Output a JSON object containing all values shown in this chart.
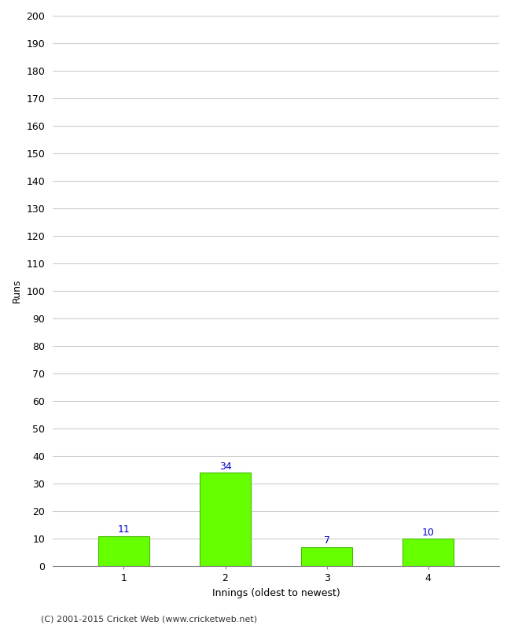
{
  "categories": [
    "1",
    "2",
    "3",
    "4"
  ],
  "values": [
    11,
    34,
    7,
    10
  ],
  "bar_color": "#66ff00",
  "bar_edgecolor": "#44bb00",
  "xlabel": "Innings (oldest to newest)",
  "ylabel": "Runs",
  "ylim": [
    0,
    200
  ],
  "ytick_step": 10,
  "value_label_color": "#0000cc",
  "value_label_fontsize": 9,
  "axis_label_fontsize": 9,
  "tick_fontsize": 9,
  "footer_text": "(C) 2001-2015 Cricket Web (www.cricketweb.net)",
  "footer_fontsize": 8,
  "background_color": "#ffffff",
  "grid_color": "#cccccc",
  "bar_width": 0.5
}
